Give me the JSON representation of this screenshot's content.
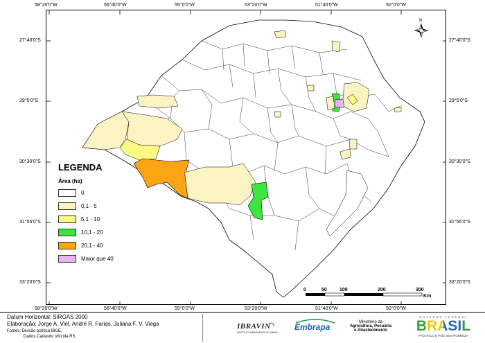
{
  "coords": {
    "top": [
      "58°20'0\"W",
      "56°40'0\"W",
      "55°0'0\"W",
      "53°20'0\"W",
      "51°40'0\"W",
      "50°0'0\"W"
    ],
    "bottom": [
      "58°20'0\"W",
      "56°40'0\"W",
      "55°0'0\"W",
      "53°20'0\"W",
      "51°40'0\"W",
      "50°0'0\"W"
    ],
    "left": [
      "27°40'0\"S",
      "29°5'0\"S",
      "30°30'0\"S",
      "31°55'0\"S",
      "33°20'0\"S"
    ],
    "right": [
      "27°40'0\"S",
      "29°5'0\"S",
      "30°30'0\"S",
      "31°55'0\"S",
      "33°20'0\"S"
    ]
  },
  "north_label": "N",
  "scale": {
    "ticks": [
      "0",
      "50",
      "100",
      "200",
      "300"
    ],
    "unit": "Km"
  },
  "legend": {
    "title": "LEGENDA",
    "subtitle": "Área (ha)",
    "items": [
      {
        "label": "0",
        "color": "#ffffff"
      },
      {
        "label": "0,1 - 5",
        "color": "#fcf3c2"
      },
      {
        "label": "5,1 - 10",
        "color": "#fafa82"
      },
      {
        "label": "10,1 - 20",
        "color": "#3ce63c"
      },
      {
        "label": "20,1 - 40",
        "color": "#fca514"
      },
      {
        "label": "Maior que 40",
        "color": "#e6b4f0"
      }
    ]
  },
  "footer": {
    "datum": "Datum Horizontal: SIRGAS 2000",
    "elaboracao": "Elaboração: Jorge A. Viel, André R. Farias, Juliana F. V. Viega",
    "fontes_1": "Fontes: Divisão política IBGE,",
    "fontes_2": "Dados Cadastro Vitícola RS",
    "logo_ibravin": "IBRAVIN",
    "logo_ibravin_sub": "INSTITUTO BRASILEIRO DO VINHO",
    "logo_embrapa": "Embrapa",
    "ministerio_1": "Ministério da",
    "ministerio_2": "Agricultura, Pecuária",
    "ministerio_3": "e Abastecimento",
    "gov_top": "GOVERNO FEDERAL",
    "gov_brasil": "BRASIL",
    "gov_slogan": "PAÍS RICO É PAÍS SEM POBREZA"
  }
}
